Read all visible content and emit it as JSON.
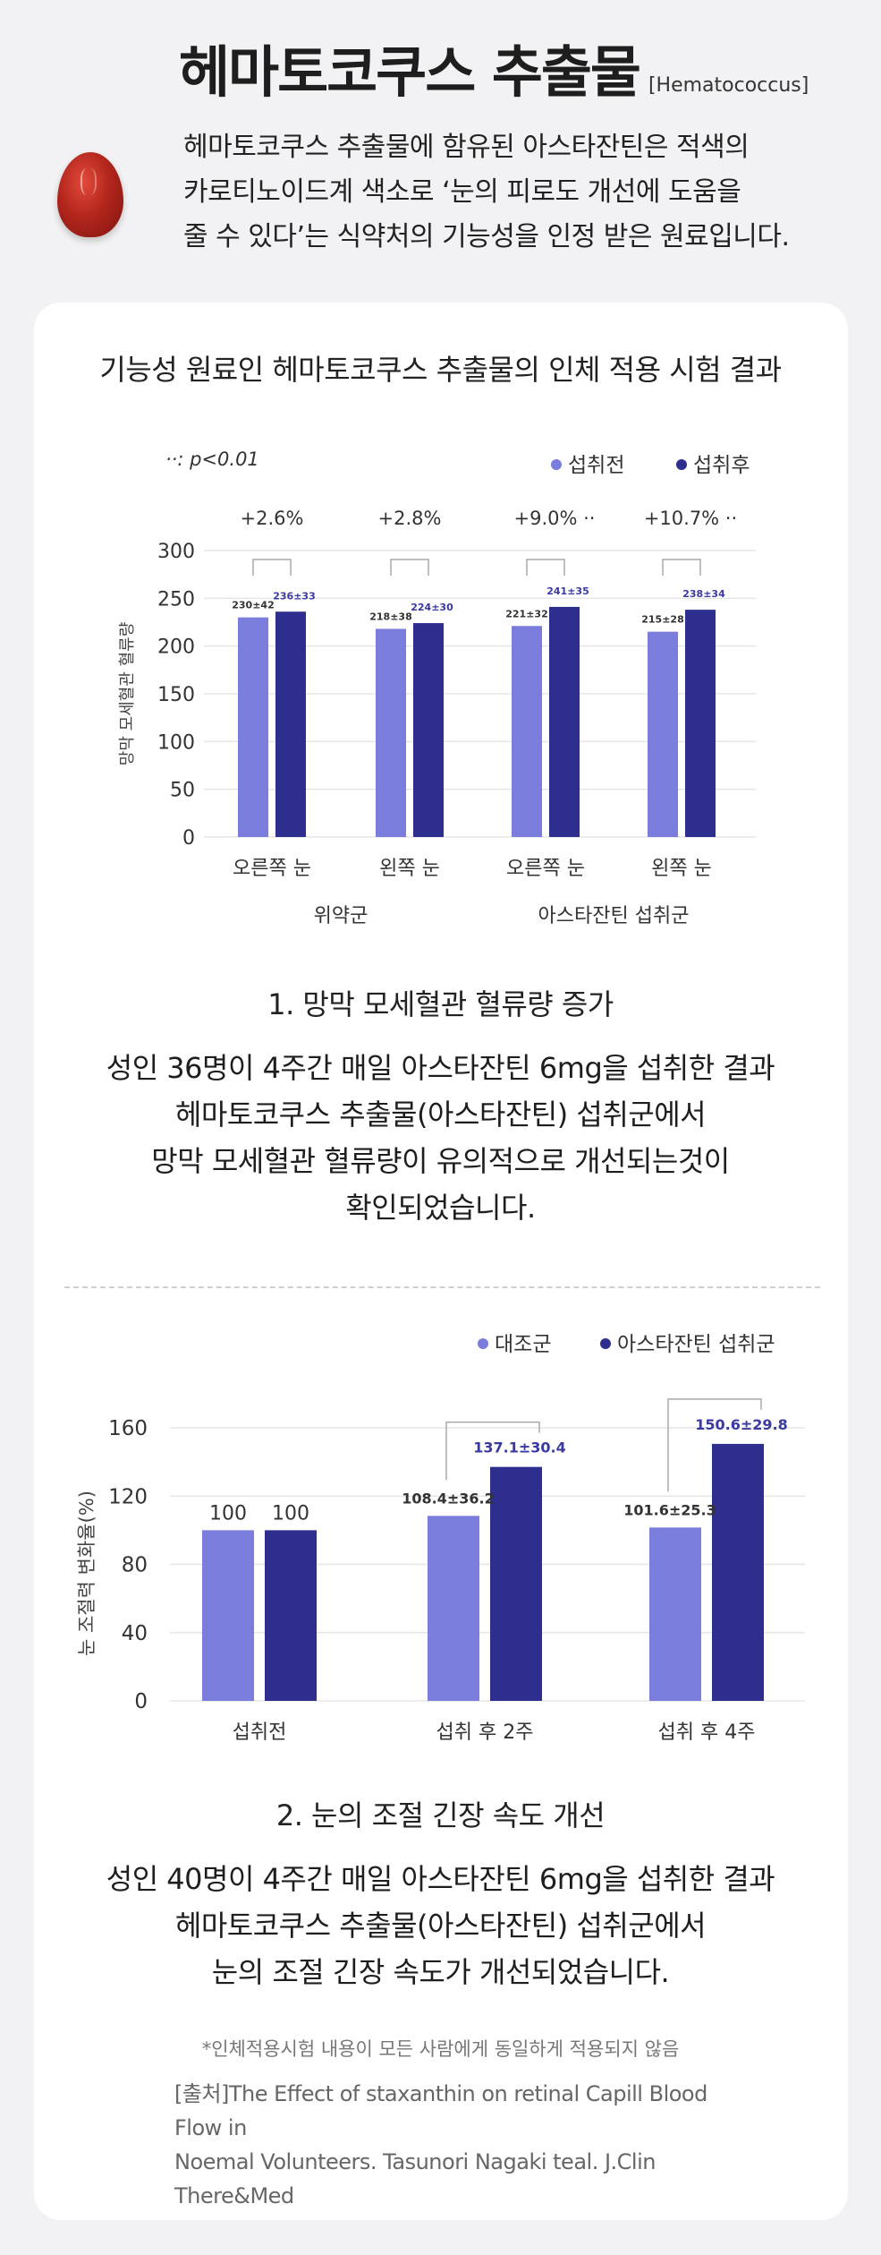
{
  "header": {
    "title_ko": "헤마토코쿠스 추출물",
    "title_en": "[Hematococcus]",
    "intro_lines": [
      "헤마토코쿠스 추출물에 함유된 아스타잔틴은 적색의",
      "카로티노이드계 색소로 ‘눈의 피로도 개선에 도움을",
      "줄 수 있다’는 식약처의 기능성을 인정 받은 원료입니다."
    ]
  },
  "card": {
    "heading": "기능성 원료인 헤마토코쿠스 추출물의 인체 적용 시험 결과",
    "section1": {
      "title": "1. 망막 모세혈관 혈류량 증가",
      "lines": [
        "성인 36명이 4주간 매일 아스타잔틴 6mg을 섭취한 결과",
        "헤마토코쿠스 추출물(아스타잔틴) 섭취군에서",
        "망막 모세혈관 혈류량이 유의적으로 개선되는것이",
        "확인되었습니다."
      ]
    },
    "section2": {
      "title": "2. 눈의 조절 긴장 속도 개선",
      "lines": [
        "성인 40명이 4주간 매일 아스타잔틴 6mg을 섭취한 결과",
        "헤마토코쿠스 추출물(아스타잔틴) 섭취군에서",
        "눈의 조절 긴장 속도가 개선되었습니다."
      ]
    },
    "note": "*인체적용시험 내용이 모든 사람에게 동일하게 적용되지 않음",
    "source_lines": [
      "[출처]The Effect of staxanthin on retinal Capill Blood Flow in",
      "Noemal Volunteers. Tasunori Nagaki teal. J.Clin There&Med"
    ]
  },
  "colors": {
    "before": "#7a7ddb",
    "after": "#2e2e8f",
    "grid": "#e6e6e6"
  },
  "chart_data": [
    {
      "type": "bar",
      "significance_note": "··: p<0.01",
      "ylabel": "망막 모세혈관 혈류량",
      "ylim": [
        0,
        300
      ],
      "yticks": [
        0,
        50,
        100,
        150,
        200,
        250,
        300
      ],
      "categories": [
        "오른쪽 눈",
        "왼쪽 눈",
        "오른쪽 눈",
        "왼쪽 눈"
      ],
      "groups": [
        {
          "label": "위약군",
          "categories": [
            0,
            1
          ]
        },
        {
          "label": "아스타잔틴 섭취군",
          "categories": [
            2,
            3
          ]
        }
      ],
      "series": [
        {
          "name": "섭취전",
          "values": [
            230,
            218,
            221,
            215
          ],
          "labels": [
            "230±42",
            "218±38",
            "221±32",
            "215±28"
          ]
        },
        {
          "name": "섭취후",
          "values": [
            236,
            224,
            241,
            238
          ],
          "labels": [
            "236±33",
            "224±30",
            "241±35",
            "238±34"
          ]
        }
      ],
      "changes": [
        "+2.6%",
        "+2.8%",
        "+9.0% ··",
        "+10.7% ··"
      ],
      "legend": "top-right",
      "grid": true
    },
    {
      "type": "bar",
      "ylabel": "눈 조절력 변화율(%)",
      "ylim": [
        0,
        160
      ],
      "yticks": [
        0,
        40,
        80,
        120,
        160
      ],
      "categories": [
        "섭취전",
        "섭취 후 2주",
        "섭취 후 4주"
      ],
      "series": [
        {
          "name": "대조군",
          "values": [
            100,
            108.4,
            101.6
          ],
          "labels": [
            "100",
            "108.4±36.2",
            "101.6±25.3"
          ]
        },
        {
          "name": "아스타잔틴 섭취군",
          "values": [
            100,
            137.1,
            150.6
          ],
          "labels": [
            "100",
            "137.1±30.4",
            "150.6±29.8"
          ]
        }
      ],
      "legend": "top-right",
      "grid": true
    }
  ]
}
